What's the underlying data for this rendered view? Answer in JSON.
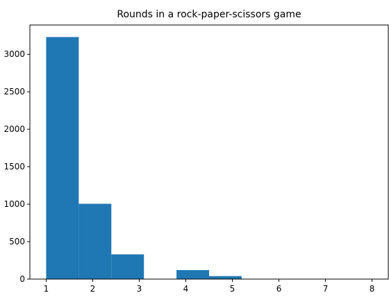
{
  "chart_data": {
    "type": "bar",
    "title": "Rounds in a rock-paper-scissors game",
    "xlabel": "",
    "ylabel": "",
    "bins": [
      {
        "start": 1.0,
        "end": 1.7,
        "count": 3230
      },
      {
        "start": 1.7,
        "end": 2.4,
        "count": 1005
      },
      {
        "start": 2.4,
        "end": 3.1,
        "count": 330
      },
      {
        "start": 3.1,
        "end": 3.8,
        "count": 0
      },
      {
        "start": 3.8,
        "end": 4.5,
        "count": 120
      },
      {
        "start": 4.5,
        "end": 5.2,
        "count": 40
      },
      {
        "start": 5.2,
        "end": 5.9,
        "count": 2
      },
      {
        "start": 5.9,
        "end": 6.6,
        "count": 1
      },
      {
        "start": 6.6,
        "end": 7.3,
        "count": 1
      },
      {
        "start": 7.3,
        "end": 8.0,
        "count": 1
      }
    ],
    "xticks": [
      1,
      2,
      3,
      4,
      5,
      6,
      7,
      8
    ],
    "yticks": [
      0,
      500,
      1000,
      1500,
      2000,
      2500,
      3000
    ],
    "xlim": [
      0.65,
      8.35
    ],
    "ylim": [
      0,
      3391
    ],
    "grid": false,
    "colors": {
      "bar": "#1f77b4",
      "axis": "#000000"
    }
  }
}
